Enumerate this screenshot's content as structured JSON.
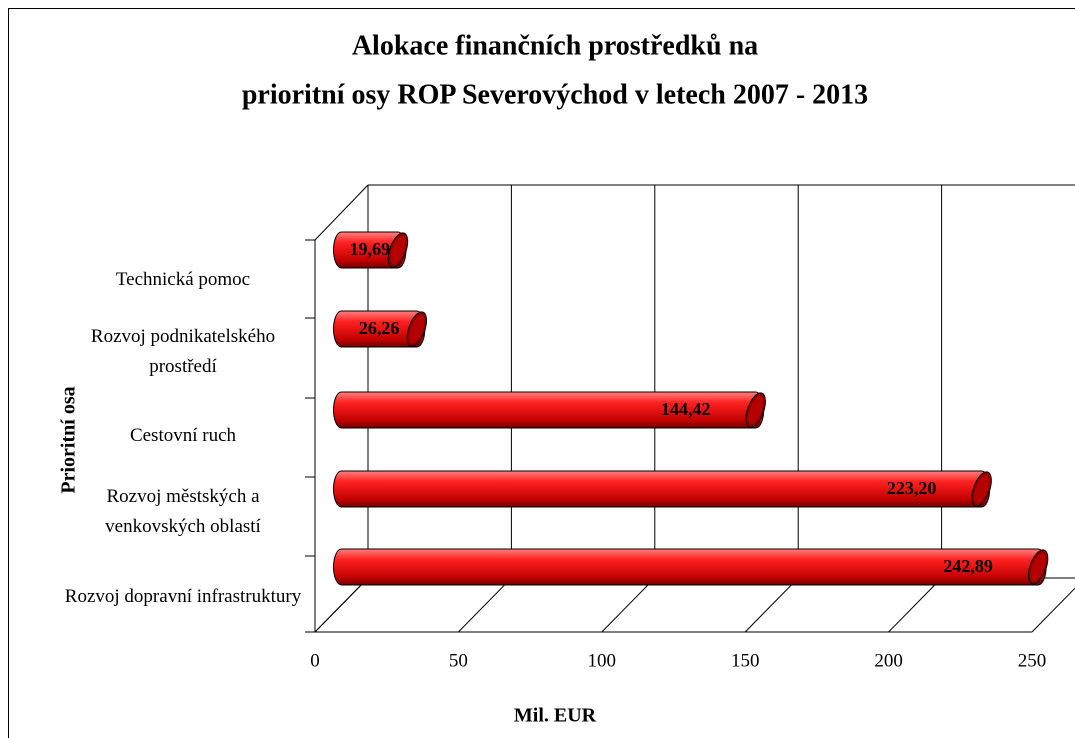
{
  "chart_data": {
    "type": "bar",
    "orientation": "horizontal",
    "title": [
      "Alokace finančních prostředků na",
      "prioritní osy ROP Severovýchod v letech 2007 - 2013"
    ],
    "x_label": "Mil. EUR",
    "y_label": "Prioritní osa",
    "categories": [
      "Technická pomoc",
      "Rozvoj podnikatelského prostředí",
      "Cestovní ruch",
      "Rozvoj městských a venkovských oblastí",
      "Rozvoj dopravní infrastruktury"
    ],
    "values": [
      19.69,
      26.26,
      144.42,
      223.2,
      242.89
    ],
    "value_labels": [
      "19,69",
      "26,26",
      "144,42",
      "223,20",
      "242,89"
    ],
    "color": "#e00000",
    "xlim": [
      0,
      250
    ],
    "xticks": [
      0,
      50,
      100,
      150,
      200,
      250
    ],
    "grid": true
  }
}
